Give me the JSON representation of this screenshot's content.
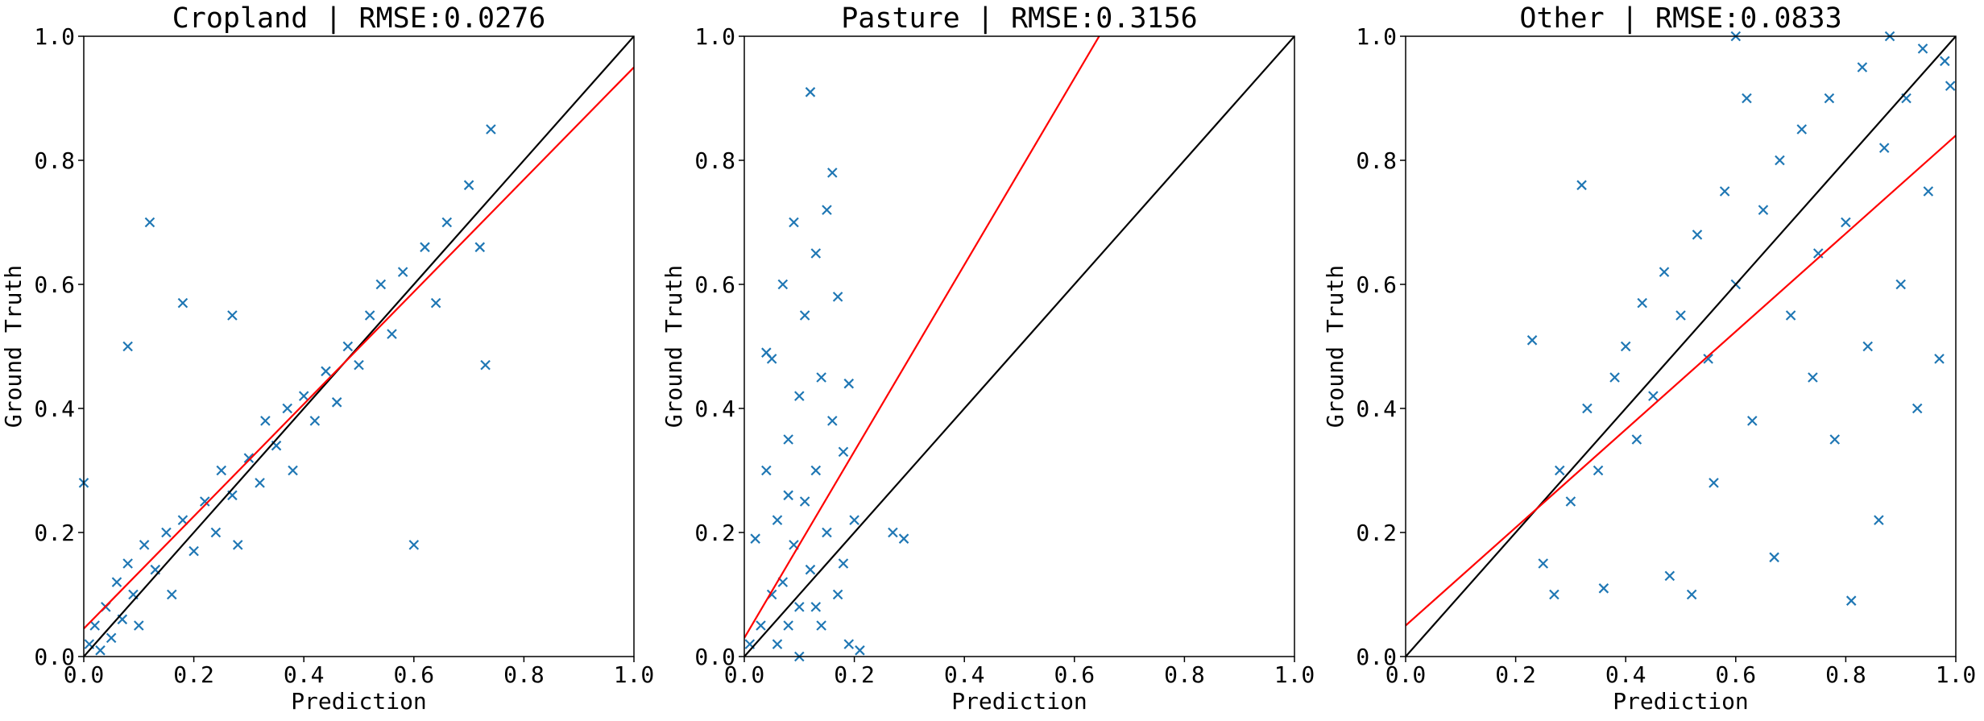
{
  "chart_data": [
    {
      "type": "scatter",
      "title": "Cropland | RMSE:0.0276",
      "x_label": "Prediction",
      "y_label": "Ground Truth",
      "color": "#1f77b4",
      "marker": "x",
      "xlim": [
        0,
        1
      ],
      "ylim": [
        0,
        1
      ],
      "xticks": [
        {
          "value": 0,
          "label": "0.0"
        },
        0.2,
        0.4,
        0.6,
        0.8,
        {
          "value": 1,
          "label": "1.0"
        }
      ],
      "yticks": [
        {
          "value": 0,
          "label": "0.0"
        },
        0.2,
        0.4,
        0.6,
        0.8,
        {
          "value": 1,
          "label": "1.0"
        }
      ],
      "x": [
        0.01,
        0.02,
        0.03,
        0.04,
        0.05,
        0.06,
        0.07,
        0.08,
        0.09,
        0.1,
        0.11,
        0.12,
        0.13,
        0.15,
        0.16,
        0.18,
        0.2,
        0.22,
        0.24,
        0.25,
        0.27,
        0.28,
        0.3,
        0.32,
        0.33,
        0.35,
        0.37,
        0.38,
        0.4,
        0.42,
        0.44,
        0.46,
        0.48,
        0.5,
        0.52,
        0.54,
        0.56,
        0.58,
        0.6,
        0.62,
        0.64,
        0.66,
        0.7,
        0.72,
        0.73,
        0.74,
        0.0,
        0.08,
        0.18,
        0.27
      ],
      "y": [
        0.02,
        0.05,
        0.01,
        0.08,
        0.03,
        0.12,
        0.06,
        0.15,
        0.1,
        0.05,
        0.18,
        0.7,
        0.14,
        0.2,
        0.1,
        0.22,
        0.17,
        0.25,
        0.2,
        0.3,
        0.26,
        0.18,
        0.32,
        0.28,
        0.38,
        0.34,
        0.4,
        0.3,
        0.42,
        0.38,
        0.46,
        0.41,
        0.5,
        0.47,
        0.55,
        0.6,
        0.52,
        0.62,
        0.18,
        0.66,
        0.57,
        0.7,
        0.76,
        0.66,
        0.47,
        0.85,
        0.28,
        0.5,
        0.57,
        0.55
      ],
      "lines": [
        {
          "color": "#000000",
          "x": [
            0,
            1
          ],
          "y": [
            0,
            1
          ]
        },
        {
          "color": "#ff0000",
          "x": [
            0,
            1
          ],
          "y": [
            0.045,
            0.95
          ]
        }
      ]
    },
    {
      "type": "scatter",
      "title": "Pasture | RMSE:0.3156",
      "x_label": "Prediction",
      "y_label": "Ground Truth",
      "color": "#1f77b4",
      "marker": "x",
      "xlim": [
        0,
        1
      ],
      "ylim": [
        0,
        1
      ],
      "xticks": [
        {
          "value": 0,
          "label": "0.0"
        },
        0.2,
        0.4,
        0.6,
        0.8,
        {
          "value": 1,
          "label": "1.0"
        }
      ],
      "yticks": [
        {
          "value": 0,
          "label": "0.0"
        },
        0.2,
        0.4,
        0.6,
        0.8,
        {
          "value": 1,
          "label": "1.0"
        }
      ],
      "x": [
        0.01,
        0.02,
        0.03,
        0.04,
        0.05,
        0.05,
        0.06,
        0.06,
        0.07,
        0.07,
        0.08,
        0.08,
        0.09,
        0.09,
        0.1,
        0.1,
        0.11,
        0.11,
        0.12,
        0.12,
        0.13,
        0.13,
        0.14,
        0.14,
        0.15,
        0.15,
        0.16,
        0.16,
        0.17,
        0.17,
        0.18,
        0.18,
        0.19,
        0.19,
        0.2,
        0.21,
        0.27,
        0.29,
        0.04,
        0.1,
        0.13,
        0.08
      ],
      "y": [
        0.02,
        0.19,
        0.05,
        0.3,
        0.1,
        0.48,
        0.02,
        0.22,
        0.6,
        0.12,
        0.35,
        0.05,
        0.7,
        0.18,
        0.42,
        0.08,
        0.55,
        0.25,
        0.91,
        0.14,
        0.65,
        0.3,
        0.45,
        0.05,
        0.72,
        0.2,
        0.78,
        0.38,
        0.58,
        0.1,
        0.33,
        0.15,
        0.44,
        0.02,
        0.22,
        0.01,
        0.2,
        0.19,
        0.49,
        0.0,
        0.08,
        0.26
      ],
      "lines": [
        {
          "color": "#000000",
          "x": [
            0,
            1
          ],
          "y": [
            0,
            1
          ]
        },
        {
          "color": "#ff0000",
          "x": [
            0,
            0.645
          ],
          "y": [
            0.03,
            1
          ]
        }
      ]
    },
    {
      "type": "scatter",
      "title": "Other | RMSE:0.0833",
      "x_label": "Prediction",
      "y_label": "Ground Truth",
      "color": "#1f77b4",
      "marker": "x",
      "xlim": [
        0,
        1
      ],
      "ylim": [
        0,
        1
      ],
      "xticks": [
        {
          "value": 0,
          "label": "0.0"
        },
        0.2,
        0.4,
        0.6,
        0.8,
        {
          "value": 1,
          "label": "1.0"
        }
      ],
      "yticks": [
        {
          "value": 0,
          "label": "0.0"
        },
        0.2,
        0.4,
        0.6,
        0.8,
        {
          "value": 1,
          "label": "1.0"
        }
      ],
      "x": [
        0.23,
        0.25,
        0.27,
        0.28,
        0.3,
        0.32,
        0.33,
        0.35,
        0.36,
        0.38,
        0.4,
        0.42,
        0.43,
        0.45,
        0.47,
        0.48,
        0.5,
        0.52,
        0.53,
        0.55,
        0.56,
        0.58,
        0.6,
        0.62,
        0.63,
        0.65,
        0.67,
        0.68,
        0.7,
        0.72,
        0.74,
        0.75,
        0.77,
        0.78,
        0.8,
        0.81,
        0.83,
        0.84,
        0.86,
        0.87,
        0.88,
        0.9,
        0.91,
        0.93,
        0.94,
        0.95,
        0.97,
        0.98,
        0.99,
        0.6
      ],
      "y": [
        0.51,
        0.15,
        0.1,
        0.3,
        0.25,
        0.76,
        0.4,
        0.3,
        0.11,
        0.45,
        0.5,
        0.35,
        0.57,
        0.42,
        0.62,
        0.13,
        0.55,
        0.1,
        0.68,
        0.48,
        0.28,
        0.75,
        0.6,
        0.9,
        0.38,
        0.72,
        0.16,
        0.8,
        0.55,
        0.85,
        0.45,
        0.65,
        0.9,
        0.35,
        0.7,
        0.09,
        0.95,
        0.5,
        0.22,
        0.82,
        1.0,
        0.6,
        0.9,
        0.4,
        0.98,
        0.75,
        0.48,
        0.96,
        0.92,
        1.0
      ],
      "lines": [
        {
          "color": "#000000",
          "x": [
            0,
            1
          ],
          "y": [
            0,
            1
          ]
        },
        {
          "color": "#ff0000",
          "x": [
            0,
            1
          ],
          "y": [
            0.05,
            0.84
          ]
        }
      ]
    }
  ]
}
